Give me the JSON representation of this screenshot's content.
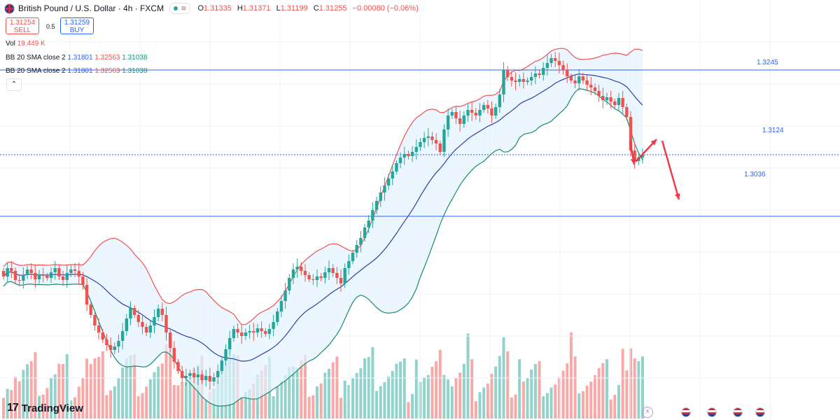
{
  "header": {
    "symbol_title": "British Pound / U.S. Dollar · 4h · FXCM",
    "ohlc": [
      {
        "k": "O",
        "v": "1.31335"
      },
      {
        "k": "H",
        "v": "1.31371"
      },
      {
        "k": "L",
        "v": "1.31199"
      },
      {
        "k": "C",
        "v": "1.31255"
      }
    ],
    "change": "−0.00080 (−0.06%)"
  },
  "trade": {
    "sell_price": "1.31254",
    "sell_label": "SELL",
    "spread": "0.5",
    "buy_price": "1.31259",
    "buy_label": "BUY"
  },
  "indicators": {
    "vol_label": "Vol",
    "vol_value": "19.449 K",
    "bb_label": "BB 20 SMA close 2",
    "bb_basis": "1.31801",
    "bb_upper": "1.32563",
    "bb_lower": "1.31038",
    "bb2_label": "BB 20 SMA close 2",
    "bb2_basis": "1.31801",
    "bb2_upper": "1.32563",
    "bb2_lower": "1.31038",
    "collapse_glyph": "⌃"
  },
  "levels": {
    "upper": "1.3245",
    "middle": "1.3124",
    "lower": "1.3036"
  },
  "brand": {
    "name": "TradingView",
    "mark": "17"
  },
  "colors": {
    "bull": "#26a69a",
    "bear": "#ef5350",
    "level": "#2962ff",
    "band_fill": "#e3f2fd",
    "arrow": "#f23645"
  },
  "chart_data": {
    "type": "candlestick",
    "title": "British Pound / U.S. Dollar · 4h · FXCM",
    "indicator": "Bollinger Bands 20 SMA close 2",
    "ylim": [
      1.2745,
      1.3345
    ],
    "horizontal_levels": [
      1.3245,
      1.3124,
      1.3036
    ],
    "close": [
      1.295,
      1.2962,
      1.2958,
      1.2945,
      1.2944,
      1.2952,
      1.296,
      1.2955,
      1.2946,
      1.2953,
      1.2951,
      1.2948,
      1.2956,
      1.2962,
      1.295,
      1.2945,
      1.2955,
      1.296,
      1.2958,
      1.295,
      1.2938,
      1.291,
      1.2895,
      1.288,
      1.287,
      1.286,
      1.2852,
      1.2845,
      1.285,
      1.2858,
      1.2872,
      1.289,
      1.2905,
      1.2895,
      1.2885,
      1.2878,
      1.287,
      1.288,
      1.2892,
      1.2904,
      1.2895,
      1.287,
      1.2848,
      1.2828,
      1.2815,
      1.2805,
      1.2808,
      1.2812,
      1.2806,
      1.281,
      1.2802,
      1.2808,
      1.28,
      1.2806,
      1.2815,
      1.283,
      1.2846,
      1.2862,
      1.2875,
      1.287,
      1.2865,
      1.287,
      1.2872,
      1.287,
      1.2876,
      1.2872,
      1.2868,
      1.2875,
      1.2885,
      1.29,
      1.2915,
      1.293,
      1.2948,
      1.296,
      1.2964,
      1.2958,
      1.2952,
      1.2946,
      1.2945,
      1.295,
      1.2948,
      1.2956,
      1.2962,
      1.2955,
      1.2948,
      1.294,
      1.2962,
      1.2972,
      1.2984,
      1.2995,
      1.3005,
      1.302,
      1.303,
      1.3045,
      1.3058,
      1.307,
      1.308,
      1.309,
      1.31,
      1.3112,
      1.312,
      1.3125,
      1.3122,
      1.3128,
      1.3135,
      1.3142,
      1.3148,
      1.315,
      1.3145,
      1.314,
      1.3128,
      1.316,
      1.318,
      1.3185,
      1.3176,
      1.3168,
      1.318,
      1.3188,
      1.3184,
      1.318,
      1.3188,
      1.3195,
      1.319,
      1.318,
      1.3192,
      1.321,
      1.3245,
      1.3235,
      1.323,
      1.3228,
      1.3232,
      1.3228,
      1.323,
      1.3235,
      1.324,
      1.3238,
      1.3248,
      1.3255,
      1.3262,
      1.3258,
      1.3252,
      1.3245,
      1.3236,
      1.323,
      1.3226,
      1.3236,
      1.323,
      1.3224,
      1.322,
      1.3215,
      1.3208,
      1.3202,
      1.3206,
      1.32,
      1.3195,
      1.3205,
      1.3192,
      1.3178,
      1.313,
      1.3115,
      1.312,
      1.3124
    ]
  }
}
